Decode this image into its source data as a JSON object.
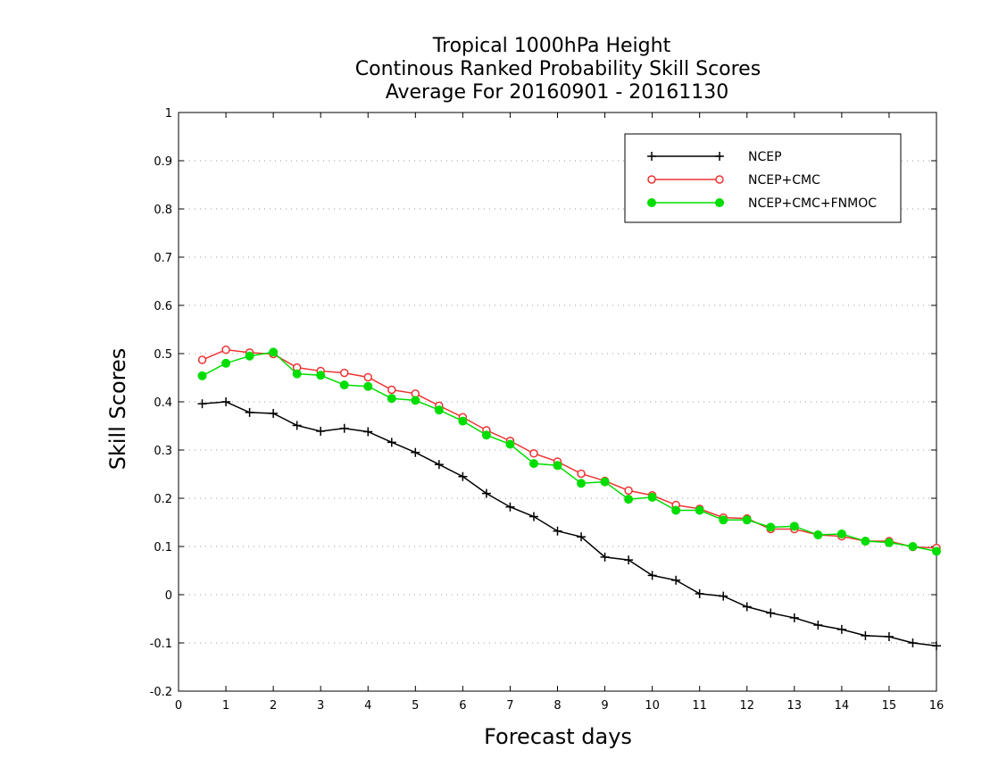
{
  "chart_data": {
    "type": "line",
    "title": [
      "Tropical 1000hPa Height",
      "Continous Ranked Probability Skill Scores",
      "Average For 20160901 - 20161130"
    ],
    "xlabel": "Forecast days",
    "ylabel": "Skill Scores",
    "xlim": [
      0,
      16
    ],
    "ylim": [
      -0.2,
      1
    ],
    "xticks": [
      "0",
      "1",
      "2",
      "3",
      "4",
      "5",
      "6",
      "7",
      "8",
      "9",
      "10",
      "11",
      "12",
      "13",
      "14",
      "15",
      "16"
    ],
    "yticks": [
      "-0.2",
      "-0.1",
      "0",
      "0.1",
      "0.2",
      "0.3",
      "0.4",
      "0.5",
      "0.6",
      "0.7",
      "0.8",
      "0.9",
      "1"
    ],
    "grid": "horizontal-dotted",
    "legend_position": "top-right",
    "x": [
      0.5,
      1,
      1.5,
      2,
      2.5,
      3,
      3.5,
      4,
      4.5,
      5,
      5.5,
      6,
      6.5,
      7,
      7.5,
      8,
      8.5,
      9,
      9.5,
      10,
      10.5,
      11,
      11.5,
      12,
      12.5,
      13,
      13.5,
      14,
      14.5,
      15,
      15.5,
      16
    ],
    "series": [
      {
        "name": "NCEP",
        "color": "#000000",
        "marker": "plus",
        "values": [
          0.396,
          0.4,
          0.378,
          0.376,
          0.351,
          0.339,
          0.345,
          0.338,
          0.316,
          0.295,
          0.27,
          0.245,
          0.21,
          0.182,
          0.162,
          0.132,
          0.12,
          0.078,
          0.072,
          0.04,
          0.03,
          0.002,
          -0.003,
          -0.025,
          -0.038,
          -0.048,
          -0.063,
          -0.072,
          -0.085,
          -0.087,
          -0.1,
          -0.106
        ]
      },
      {
        "name": "NCEP+CMC",
        "color": "#ee3333",
        "marker": "open-circle",
        "values": [
          0.487,
          0.508,
          0.502,
          0.499,
          0.471,
          0.464,
          0.46,
          0.451,
          0.425,
          0.417,
          0.392,
          0.368,
          0.341,
          0.319,
          0.293,
          0.276,
          0.251,
          0.236,
          0.216,
          0.206,
          0.186,
          0.178,
          0.16,
          0.158,
          0.136,
          0.136,
          0.124,
          0.121,
          0.111,
          0.111,
          0.099,
          0.097
        ]
      },
      {
        "name": "NCEP+CMC+FNMOC",
        "color": "#00dd00",
        "marker": "filled-circle",
        "values": [
          0.454,
          0.48,
          0.495,
          0.503,
          0.458,
          0.455,
          0.435,
          0.432,
          0.407,
          0.403,
          0.383,
          0.36,
          0.331,
          0.312,
          0.272,
          0.268,
          0.231,
          0.234,
          0.198,
          0.202,
          0.175,
          0.175,
          0.155,
          0.155,
          0.14,
          0.142,
          0.124,
          0.126,
          0.111,
          0.108,
          0.1,
          0.09
        ]
      }
    ]
  }
}
